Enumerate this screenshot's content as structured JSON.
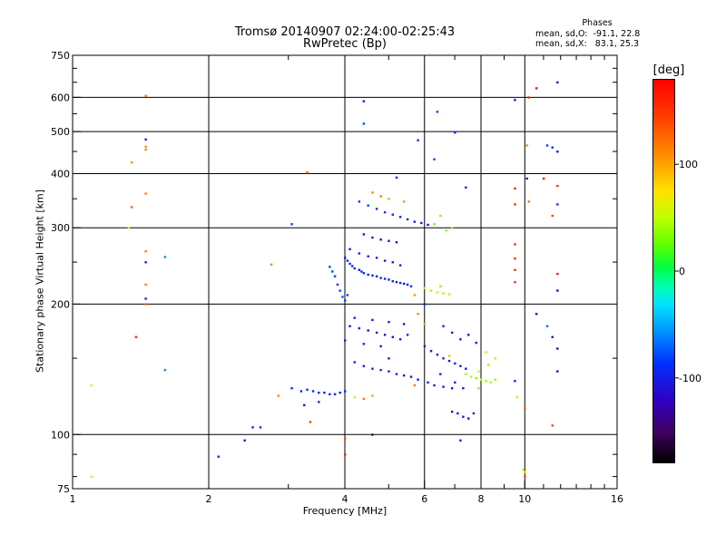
{
  "title": "Tromsø 20140907 02:24:00-02:25:43",
  "subtitle": "RwPretec (Bp)",
  "legend": {
    "heading": "Phases",
    "line_o": "mean, sd,O:  -91.1, 22.8",
    "line_x": "mean, sd,X:   83.1, 25.3"
  },
  "colorbar": {
    "title": "[deg]",
    "ticks": [
      "100",
      "0",
      "-100"
    ]
  },
  "chart_data": {
    "type": "scatter",
    "title": "Tromsø 20140907 02:24:00-02:25:43",
    "subtitle": "RwPretec (Bp)",
    "xlabel": "Frequency [MHz]",
    "ylabel": "Stationary phase Virtual Height [km]",
    "x_scale": "log",
    "y_scale": "log",
    "xlim": [
      1,
      16
    ],
    "ylim": [
      75,
      750
    ],
    "x_ticks": [
      1,
      2,
      4,
      6,
      8,
      10,
      16
    ],
    "y_ticks": [
      75,
      100,
      200,
      300,
      400,
      500,
      600,
      750
    ],
    "grid_x": [
      2,
      4,
      6,
      8,
      10
    ],
    "grid_y": [
      100,
      200,
      300,
      400,
      500,
      600
    ],
    "color_scale": {
      "label": "[deg]",
      "range": [
        -180,
        180
      ],
      "ticks": [
        100,
        0,
        -100
      ]
    },
    "points": [
      [
        3.2,
        126,
        -95
      ],
      [
        3.3,
        127,
        -98
      ],
      [
        3.4,
        126,
        -93
      ],
      [
        3.5,
        125,
        -97
      ],
      [
        3.6,
        125,
        -100
      ],
      [
        3.7,
        124,
        -95
      ],
      [
        3.8,
        124,
        -98
      ],
      [
        3.9,
        125,
        -93
      ],
      [
        4.0,
        126,
        -88
      ],
      [
        3.05,
        128,
        -92
      ],
      [
        3.5,
        119,
        -100
      ],
      [
        3.25,
        117,
        -105
      ],
      [
        4.2,
        122,
        60
      ],
      [
        4.4,
        121,
        120
      ],
      [
        4.6,
        123,
        100
      ],
      [
        2.5,
        104,
        -90
      ],
      [
        2.6,
        104,
        -85
      ],
      [
        2.4,
        97,
        -100
      ],
      [
        2.1,
        89,
        -95
      ],
      [
        2.85,
        123,
        110
      ],
      [
        4.0,
        256,
        -95
      ],
      [
        4.05,
        252,
        -100
      ],
      [
        4.1,
        248,
        -92
      ],
      [
        4.15,
        245,
        -96
      ],
      [
        4.2,
        242,
        -88
      ],
      [
        4.3,
        240,
        -100
      ],
      [
        4.35,
        238,
        -90
      ],
      [
        4.4,
        236,
        -95
      ],
      [
        4.5,
        234,
        -98
      ],
      [
        4.6,
        233,
        -93
      ],
      [
        4.7,
        232,
        -100
      ],
      [
        4.8,
        230,
        -96
      ],
      [
        4.9,
        229,
        -92
      ],
      [
        5.0,
        228,
        -99
      ],
      [
        5.1,
        226,
        -94
      ],
      [
        5.2,
        225,
        -97
      ],
      [
        5.3,
        224,
        -90
      ],
      [
        5.4,
        223,
        -100
      ],
      [
        5.5,
        222,
        -95
      ],
      [
        5.6,
        220,
        -93
      ],
      [
        3.85,
        222,
        -85
      ],
      [
        3.9,
        215,
        -80
      ],
      [
        3.95,
        208,
        -75
      ],
      [
        4.0,
        204,
        -78
      ],
      [
        4.05,
        210,
        -82
      ],
      [
        3.7,
        244,
        -80
      ],
      [
        3.75,
        238,
        -78
      ],
      [
        3.8,
        232,
        -82
      ],
      [
        4.1,
        268,
        -100
      ],
      [
        4.3,
        262,
        -96
      ],
      [
        4.5,
        258,
        -100
      ],
      [
        4.7,
        256,
        -98
      ],
      [
        4.9,
        252,
        -102
      ],
      [
        5.1,
        250,
        -96
      ],
      [
        5.3,
        246,
        -100
      ],
      [
        4.4,
        290,
        -110
      ],
      [
        4.6,
        285,
        -105
      ],
      [
        4.8,
        282,
        -112
      ],
      [
        5.0,
        280,
        -108
      ],
      [
        5.2,
        278,
        -110
      ],
      [
        4.3,
        345,
        -85
      ],
      [
        4.5,
        338,
        -80
      ],
      [
        4.7,
        332,
        -90
      ],
      [
        4.9,
        326,
        -88
      ],
      [
        5.1,
        322,
        -92
      ],
      [
        5.3,
        318,
        -95
      ],
      [
        5.5,
        314,
        -98
      ],
      [
        5.7,
        310,
        -100
      ],
      [
        5.9,
        308,
        -102
      ],
      [
        6.1,
        305,
        -105
      ],
      [
        4.6,
        362,
        110
      ],
      [
        4.8,
        355,
        120
      ],
      [
        5.0,
        350,
        100
      ],
      [
        5.4,
        345,
        105
      ],
      [
        6.3,
        306,
        30
      ],
      [
        4.1,
        178,
        -105
      ],
      [
        4.3,
        176,
        -100
      ],
      [
        4.5,
        174,
        -110
      ],
      [
        4.7,
        172,
        -105
      ],
      [
        4.9,
        170,
        -102
      ],
      [
        5.1,
        168,
        -108
      ],
      [
        5.3,
        166,
        -100
      ],
      [
        5.5,
        170,
        -104
      ],
      [
        4.2,
        186,
        -98
      ],
      [
        4.6,
        184,
        -102
      ],
      [
        5.0,
        182,
        -100
      ],
      [
        5.4,
        180,
        -106
      ],
      [
        4.0,
        165,
        -100
      ],
      [
        4.4,
        162,
        -96
      ],
      [
        4.8,
        160,
        -104
      ],
      [
        4.2,
        147,
        -100
      ],
      [
        4.4,
        144,
        -104
      ],
      [
        4.6,
        142,
        -100
      ],
      [
        4.8,
        141,
        -98
      ],
      [
        5.0,
        140,
        -102
      ],
      [
        5.2,
        138,
        -100
      ],
      [
        5.4,
        137,
        -96
      ],
      [
        5.6,
        136,
        -105
      ],
      [
        5.8,
        134,
        -98
      ],
      [
        5.0,
        150,
        -100
      ],
      [
        6.0,
        160,
        -95
      ],
      [
        6.2,
        156,
        -100
      ],
      [
        6.4,
        153,
        -105
      ],
      [
        6.6,
        150,
        -98
      ],
      [
        6.8,
        148,
        -102
      ],
      [
        7.0,
        146,
        -100
      ],
      [
        7.2,
        144,
        -104
      ],
      [
        7.4,
        142,
        -98
      ],
      [
        6.5,
        138,
        -105
      ],
      [
        7.0,
        132,
        -100
      ],
      [
        6.1,
        132,
        -96
      ],
      [
        6.3,
        130,
        -100
      ],
      [
        6.6,
        129,
        -104
      ],
      [
        6.9,
        128,
        -98
      ],
      [
        7.3,
        128,
        -102
      ],
      [
        7.1,
        112,
        -110
      ],
      [
        7.3,
        110,
        -105
      ],
      [
        7.5,
        109,
        -112
      ],
      [
        6.9,
        113,
        -108
      ],
      [
        7.7,
        112,
        -104
      ],
      [
        6.6,
        178,
        -98
      ],
      [
        6.9,
        172,
        -102
      ],
      [
        7.2,
        166,
        -100
      ],
      [
        7.5,
        170,
        -106
      ],
      [
        7.8,
        163,
        -100
      ],
      [
        7.4,
        138,
        40
      ],
      [
        7.6,
        136,
        45
      ],
      [
        7.8,
        135,
        35
      ],
      [
        8.0,
        134,
        50
      ],
      [
        8.2,
        133,
        40
      ],
      [
        8.4,
        132,
        45
      ],
      [
        8.6,
        134,
        38
      ],
      [
        7.9,
        140,
        48
      ],
      [
        8.3,
        145,
        42
      ],
      [
        8.6,
        150,
        45
      ],
      [
        8.2,
        155,
        50
      ],
      [
        7.9,
        128,
        35
      ],
      [
        6.0,
        218,
        45
      ],
      [
        6.2,
        215,
        40
      ],
      [
        6.4,
        213,
        48
      ],
      [
        6.6,
        212,
        42
      ],
      [
        6.8,
        211,
        45
      ],
      [
        6.5,
        220,
        38
      ],
      [
        6.7,
        296,
        40
      ],
      [
        6.9,
        300,
        42
      ],
      [
        6.5,
        320,
        35
      ],
      [
        5.8,
        190,
        110
      ],
      [
        6.0,
        180,
        100
      ],
      [
        5.7,
        130,
        120
      ],
      [
        6.8,
        152,
        90
      ],
      [
        4.4,
        522,
        -80
      ],
      [
        4.4,
        588,
        -98
      ],
      [
        5.8,
        478,
        -90
      ],
      [
        6.4,
        556,
        -80
      ],
      [
        7.0,
        498,
        -100
      ],
      [
        6.3,
        432,
        -80
      ],
      [
        7.4,
        372,
        -100
      ],
      [
        5.2,
        392,
        -90
      ],
      [
        6.0,
        200,
        -95
      ],
      [
        5.7,
        210,
        105
      ],
      [
        1.45,
        605,
        120
      ],
      [
        1.45,
        480,
        -100
      ],
      [
        1.45,
        462,
        110
      ],
      [
        1.45,
        455,
        115
      ],
      [
        1.35,
        425,
        110
      ],
      [
        1.45,
        360,
        120
      ],
      [
        1.35,
        335,
        130
      ],
      [
        1.33,
        300,
        60
      ],
      [
        1.45,
        265,
        120
      ],
      [
        1.45,
        250,
        -100
      ],
      [
        1.45,
        222,
        120
      ],
      [
        1.45,
        206,
        -100
      ],
      [
        1.45,
        200,
        120
      ],
      [
        1.38,
        168,
        160
      ],
      [
        1.6,
        257,
        -60
      ],
      [
        1.6,
        141,
        -60
      ],
      [
        1.1,
        80,
        50
      ],
      [
        1.1,
        130,
        60
      ],
      [
        3.3,
        403,
        130
      ],
      [
        3.05,
        306,
        -80
      ],
      [
        2.75,
        247,
        110
      ],
      [
        3.35,
        107,
        140
      ],
      [
        9.5,
        592,
        -100
      ],
      [
        10.2,
        600,
        160
      ],
      [
        10.6,
        630,
        170
      ],
      [
        11.8,
        650,
        -120
      ],
      [
        10.1,
        465,
        110
      ],
      [
        11.2,
        465,
        -80
      ],
      [
        11.5,
        460,
        -90
      ],
      [
        11.8,
        450,
        -120
      ],
      [
        10.1,
        390,
        -120
      ],
      [
        11.0,
        390,
        180
      ],
      [
        11.8,
        375,
        160
      ],
      [
        11.8,
        340,
        -90
      ],
      [
        9.5,
        370,
        160
      ],
      [
        9.5,
        340,
        160
      ],
      [
        10.2,
        345,
        120
      ],
      [
        11.5,
        320,
        140
      ],
      [
        9.5,
        275,
        160
      ],
      [
        9.5,
        255,
        160
      ],
      [
        9.5,
        240,
        160
      ],
      [
        9.5,
        225,
        160
      ],
      [
        11.8,
        235,
        170
      ],
      [
        11.8,
        215,
        -120
      ],
      [
        10.6,
        190,
        -120
      ],
      [
        11.2,
        178,
        -70
      ],
      [
        11.5,
        168,
        -120
      ],
      [
        11.8,
        158,
        -120
      ],
      [
        11.8,
        140,
        -120
      ],
      [
        9.5,
        133,
        -100
      ],
      [
        9.6,
        122,
        60
      ],
      [
        10.0,
        115,
        130
      ],
      [
        11.5,
        105,
        140
      ],
      [
        9.9,
        83,
        60
      ],
      [
        10.0,
        82,
        80
      ],
      [
        10.0,
        80,
        140
      ],
      [
        4.6,
        100,
        -140
      ],
      [
        7.2,
        97,
        -100
      ],
      [
        4.0,
        98,
        140
      ],
      [
        4.0,
        90,
        160
      ]
    ]
  }
}
